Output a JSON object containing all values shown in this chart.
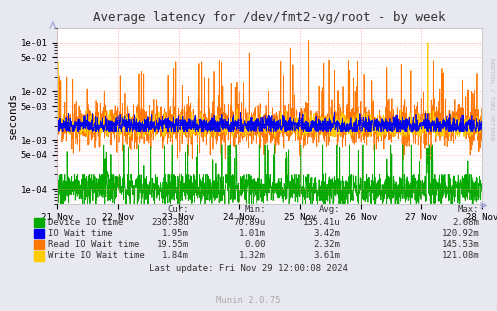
{
  "title": "Average latency for /dev/fmt2-vg/root - by week",
  "ylabel": "seconds",
  "bg_color": "#E8E8F0",
  "plot_bg_color": "#FFFFFF",
  "grid_color": "#FF9999",
  "colors": {
    "device_io": "#00AA00",
    "io_wait": "#0000EE",
    "read_io_wait": "#FF7700",
    "write_io_wait": "#FFCC00"
  },
  "legend_labels": [
    "Device IO time",
    "IO Wait time",
    "Read IO Wait time",
    "Write IO Wait time"
  ],
  "legend_colors": [
    "#00AA00",
    "#0000EE",
    "#FF7700",
    "#FFCC00"
  ],
  "xtick_labels": [
    "21 Nov",
    "22 Nov",
    "23 Nov",
    "24 Nov",
    "25 Nov",
    "26 Nov",
    "27 Nov",
    "28 Nov"
  ],
  "ytick_vals": [
    0.0001,
    0.0005,
    0.001,
    0.005,
    0.01,
    0.05,
    0.1
  ],
  "ytick_labels": [
    "1e-04",
    "5e-04",
    "1e-03",
    "5e-03",
    "1e-02",
    "5e-02",
    "1e-01"
  ],
  "table_rows": [
    [
      "Device IO time",
      "230.38u",
      "70.89u",
      "135.41u",
      "2.68m"
    ],
    [
      "IO Wait time",
      "1.95m",
      "1.01m",
      "3.42m",
      "120.92m"
    ],
    [
      "Read IO Wait time",
      "19.55m",
      "0.00",
      "2.32m",
      "145.53m"
    ],
    [
      "Write IO Wait time",
      "1.84m",
      "1.32m",
      "3.61m",
      "121.08m"
    ]
  ],
  "footer": "Last update: Fri Nov 29 12:00:08 2024",
  "munin_version": "Munin 2.0.75",
  "rrdtool_label": "RRDTOOL / TOBI OETIKER",
  "n_points": 2000,
  "ylim": [
    5e-05,
    0.2
  ]
}
